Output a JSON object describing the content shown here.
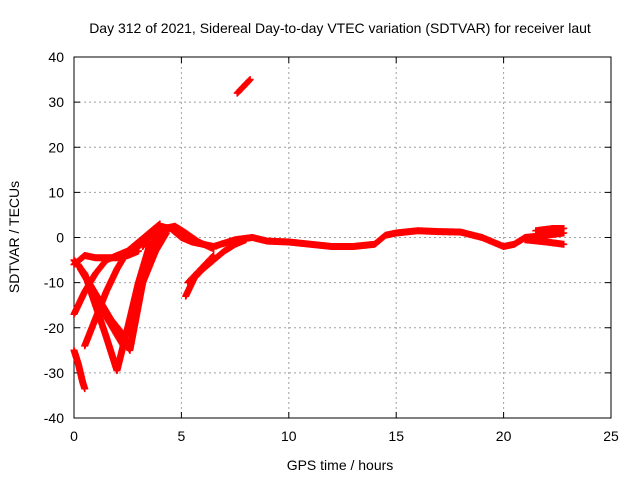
{
  "chart_data": {
    "type": "scatter",
    "title": "Day 312 of 2021, Sidereal Day-to-day VTEC variation (SDTVAR) for receiver laut",
    "xlabel": "GPS time / hours",
    "ylabel": "SDTVAR / TECUs",
    "xlim": [
      0,
      25
    ],
    "ylim": [
      -40,
      40
    ],
    "xticks": [
      0,
      5,
      10,
      15,
      20,
      25
    ],
    "yticks": [
      -40,
      -30,
      -20,
      -10,
      0,
      10,
      20,
      30,
      40
    ],
    "xtick_labels": [
      "0",
      "5",
      "10",
      "15",
      "20",
      "25"
    ],
    "ytick_labels": [
      "-40",
      "-30",
      "-20",
      "-10",
      "0",
      "10",
      "20",
      "30",
      "40"
    ],
    "grid": true,
    "marker": "+",
    "color": "#ff0000",
    "series": [
      {
        "name": "main-flat",
        "points": [
          [
            5.5,
            -1
          ],
          [
            6.5,
            -2
          ],
          [
            7.5,
            -0.5
          ],
          [
            8.3,
            0
          ],
          [
            9,
            -0.8
          ],
          [
            10,
            -1
          ],
          [
            11,
            -1.5
          ],
          [
            12,
            -2
          ],
          [
            13,
            -2
          ],
          [
            14,
            -1.5
          ],
          [
            14.5,
            0.5
          ],
          [
            15,
            1
          ],
          [
            16,
            1.5
          ],
          [
            17,
            1.3
          ],
          [
            18,
            1.2
          ],
          [
            19,
            0
          ],
          [
            20,
            -2
          ],
          [
            20.5,
            -1.5
          ],
          [
            21,
            0
          ],
          [
            22,
            0.5
          ],
          [
            22.8,
            1
          ]
        ]
      },
      {
        "name": "tail-spread-a",
        "points": [
          [
            21,
            -0.5
          ],
          [
            22,
            -1
          ],
          [
            22.8,
            -1.5
          ]
        ]
      },
      {
        "name": "tail-spread-b",
        "points": [
          [
            21.5,
            1.5
          ],
          [
            22.3,
            2
          ],
          [
            22.8,
            2
          ]
        ]
      },
      {
        "name": "hump-main",
        "points": [
          [
            3.2,
            -2
          ],
          [
            3.6,
            1
          ],
          [
            4,
            2.5
          ],
          [
            4.5,
            2
          ],
          [
            5,
            0
          ],
          [
            5.5,
            -1
          ]
        ]
      },
      {
        "name": "hump-second",
        "points": [
          [
            3.8,
            1
          ],
          [
            4.2,
            2
          ],
          [
            4.7,
            2.5
          ],
          [
            5.2,
            1
          ],
          [
            5.8,
            -1
          ],
          [
            6.5,
            -2.5
          ]
        ]
      },
      {
        "name": "early-flat",
        "points": [
          [
            0,
            -6
          ],
          [
            0.5,
            -4
          ],
          [
            1,
            -4.5
          ],
          [
            1.5,
            -4.5
          ],
          [
            2,
            -4.5
          ],
          [
            2.5,
            -4
          ],
          [
            3,
            -3
          ]
        ]
      },
      {
        "name": "rise-a",
        "points": [
          [
            0,
            -17
          ],
          [
            0.5,
            -12
          ],
          [
            1,
            -8
          ],
          [
            1.5,
            -5
          ],
          [
            2,
            -4
          ],
          [
            2.5,
            -3
          ],
          [
            3,
            -2
          ],
          [
            3.5,
            0
          ],
          [
            4,
            2
          ]
        ]
      },
      {
        "name": "dip-b",
        "points": [
          [
            0,
            -5
          ],
          [
            0.5,
            -8
          ],
          [
            1,
            -15
          ],
          [
            1.5,
            -22
          ],
          [
            2,
            -29.5
          ],
          [
            2.5,
            -20
          ],
          [
            3,
            -10
          ],
          [
            3.5,
            -2
          ],
          [
            4,
            1
          ]
        ]
      },
      {
        "name": "rise-c",
        "points": [
          [
            0.5,
            -24
          ],
          [
            1,
            -18
          ],
          [
            1.5,
            -12
          ],
          [
            2,
            -7
          ],
          [
            2.5,
            -3
          ],
          [
            3,
            -1
          ],
          [
            3.5,
            1
          ],
          [
            4,
            3
          ]
        ]
      },
      {
        "name": "dip-d",
        "points": [
          [
            0.2,
            -6
          ],
          [
            0.7,
            -10
          ],
          [
            1.2,
            -14
          ],
          [
            1.7,
            -18
          ],
          [
            2.2,
            -21
          ],
          [
            2.6,
            -25
          ],
          [
            2.8,
            -20
          ],
          [
            3.2,
            -10
          ],
          [
            3.8,
            -3
          ],
          [
            4.3,
            1
          ]
        ]
      },
      {
        "name": "dip-e",
        "points": [
          [
            0.3,
            -7
          ],
          [
            0.8,
            -11
          ],
          [
            1.3,
            -16
          ],
          [
            1.8,
            -20
          ],
          [
            2.3,
            -24
          ],
          [
            2.5,
            -23
          ]
        ]
      },
      {
        "name": "rise-f",
        "points": [
          [
            2.8,
            -16
          ],
          [
            3.2,
            -10
          ],
          [
            3.6,
            -4
          ],
          [
            4,
            0
          ],
          [
            4.4,
            2
          ]
        ]
      },
      {
        "name": "rise-g",
        "points": [
          [
            5.2,
            -13
          ],
          [
            5.6,
            -9
          ],
          [
            6,
            -7
          ],
          [
            6.5,
            -5
          ],
          [
            7,
            -3
          ],
          [
            7.5,
            -1.5
          ],
          [
            8,
            -0.5
          ]
        ]
      },
      {
        "name": "rise-h",
        "points": [
          [
            5.3,
            -10
          ],
          [
            5.7,
            -8
          ],
          [
            6.1,
            -6
          ],
          [
            6.5,
            -4
          ]
        ]
      },
      {
        "name": "low-drop",
        "points": [
          [
            0,
            -25
          ],
          [
            0.2,
            -28
          ],
          [
            0.4,
            -32
          ],
          [
            0.5,
            -33.5
          ]
        ]
      },
      {
        "name": "high-segment",
        "points": [
          [
            7.6,
            32
          ],
          [
            7.9,
            33.5
          ],
          [
            8.2,
            35
          ]
        ]
      }
    ]
  }
}
